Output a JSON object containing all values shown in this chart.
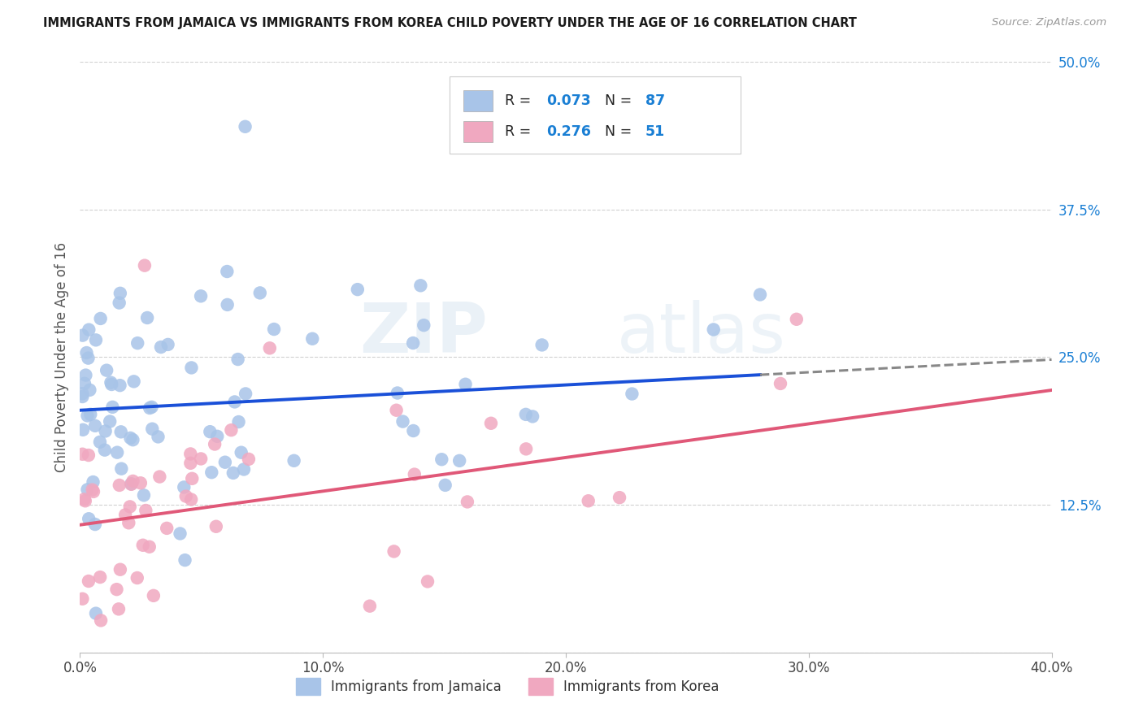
{
  "title": "IMMIGRANTS FROM JAMAICA VS IMMIGRANTS FROM KOREA CHILD POVERTY UNDER THE AGE OF 16 CORRELATION CHART",
  "source": "Source: ZipAtlas.com",
  "ylabel": "Child Poverty Under the Age of 16",
  "jamaica_color": "#a8c4e8",
  "korea_color": "#f0a8c0",
  "jamaica_line_color": "#1a50d8",
  "korea_line_color": "#e05878",
  "r_color": "#1a7fd4",
  "xlim": [
    0.0,
    0.4
  ],
  "ylim": [
    0.0,
    0.5
  ],
  "background_color": "#ffffff",
  "grid_color": "#cccccc",
  "jamaica_N": 87,
  "korea_N": 51,
  "jamaica_R": 0.073,
  "korea_R": 0.276,
  "jam_line_x0": 0.0,
  "jam_line_y0": 0.205,
  "jam_line_x1": 0.28,
  "jam_line_y1": 0.235,
  "jam_line_dash_x1": 0.4,
  "jam_line_dash_y1": 0.248,
  "kor_line_x0": 0.0,
  "kor_line_y0": 0.108,
  "kor_line_x1": 0.4,
  "kor_line_y1": 0.222
}
